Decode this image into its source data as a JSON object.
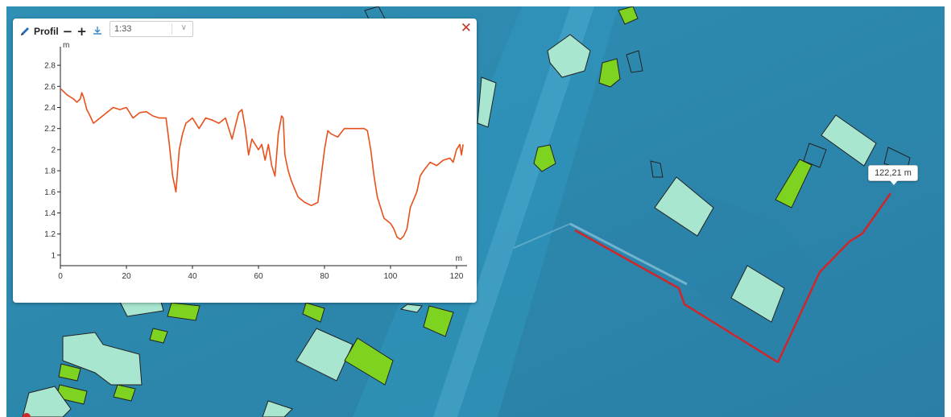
{
  "colors": {
    "map_background": "#2e86ab",
    "building_fill": "#a8e6cf",
    "building_green_fill": "#7ed321",
    "measure_line": "#d0252b",
    "profile_line": "#e8501c",
    "close_icon": "#c0392b"
  },
  "profile_panel": {
    "title": "Profil",
    "minus_label": "−",
    "plus_label": "+",
    "download_icon": "download-icon",
    "scale_value": "1:33",
    "close_icon": "close-icon",
    "pencil_icon": "pencil-icon"
  },
  "map": {
    "measure_label": "122,21 m"
  },
  "chart_data": {
    "type": "line",
    "xlabel": "m",
    "ylabel": "m",
    "x_ticks": [
      "0",
      "20",
      "40",
      "60",
      "80",
      "100",
      "120"
    ],
    "y_ticks": [
      "1",
      "1.2",
      "1.4",
      "1.6",
      "1.8",
      "2",
      "2.2",
      "2.4",
      "2.6",
      "2.8"
    ],
    "xlim": [
      0,
      122.21
    ],
    "ylim": [
      0.9,
      2.9
    ],
    "series": [
      {
        "values": [
          [
            0,
            2.58
          ],
          [
            2,
            2.52
          ],
          [
            4,
            2.48
          ],
          [
            5,
            2.45
          ],
          [
            6,
            2.48
          ],
          [
            6.5,
            2.54
          ],
          [
            7,
            2.5
          ],
          [
            8,
            2.38
          ],
          [
            9,
            2.32
          ],
          [
            10,
            2.25
          ],
          [
            12,
            2.3
          ],
          [
            14,
            2.35
          ],
          [
            16,
            2.4
          ],
          [
            18,
            2.38
          ],
          [
            20,
            2.4
          ],
          [
            22,
            2.3
          ],
          [
            24,
            2.35
          ],
          [
            26,
            2.36
          ],
          [
            28,
            2.32
          ],
          [
            30,
            2.3
          ],
          [
            32,
            2.3
          ],
          [
            33,
            2.05
          ],
          [
            34,
            1.75
          ],
          [
            35,
            1.6
          ],
          [
            36,
            2.0
          ],
          [
            37,
            2.15
          ],
          [
            38,
            2.25
          ],
          [
            40,
            2.3
          ],
          [
            42,
            2.2
          ],
          [
            44,
            2.3
          ],
          [
            46,
            2.28
          ],
          [
            48,
            2.25
          ],
          [
            50,
            2.3
          ],
          [
            52,
            2.1
          ],
          [
            54,
            2.35
          ],
          [
            55,
            2.38
          ],
          [
            56,
            2.2
          ],
          [
            57,
            1.95
          ],
          [
            58,
            2.1
          ],
          [
            59,
            2.05
          ],
          [
            60,
            2.0
          ],
          [
            61,
            2.05
          ],
          [
            62,
            1.9
          ],
          [
            63,
            2.05
          ],
          [
            64,
            1.85
          ],
          [
            65,
            1.75
          ],
          [
            66,
            2.15
          ],
          [
            67,
            2.32
          ],
          [
            67.5,
            2.3
          ],
          [
            68,
            1.95
          ],
          [
            69,
            1.8
          ],
          [
            70,
            1.7
          ],
          [
            72,
            1.55
          ],
          [
            74,
            1.5
          ],
          [
            76,
            1.47
          ],
          [
            78,
            1.5
          ],
          [
            80,
            2.0
          ],
          [
            81,
            2.18
          ],
          [
            82,
            2.15
          ],
          [
            84,
            2.12
          ],
          [
            86,
            2.2
          ],
          [
            88,
            2.2
          ],
          [
            90,
            2.2
          ],
          [
            92,
            2.2
          ],
          [
            93,
            2.18
          ],
          [
            94,
            2.0
          ],
          [
            95,
            1.75
          ],
          [
            96,
            1.55
          ],
          [
            97,
            1.45
          ],
          [
            98,
            1.35
          ],
          [
            100,
            1.3
          ],
          [
            101,
            1.25
          ],
          [
            102,
            1.17
          ],
          [
            103,
            1.15
          ],
          [
            104,
            1.18
          ],
          [
            105,
            1.25
          ],
          [
            106,
            1.45
          ],
          [
            108,
            1.6
          ],
          [
            109,
            1.75
          ],
          [
            110,
            1.8
          ],
          [
            112,
            1.88
          ],
          [
            114,
            1.85
          ],
          [
            116,
            1.9
          ],
          [
            118,
            1.92
          ],
          [
            119,
            1.88
          ],
          [
            120,
            2.0
          ],
          [
            121,
            2.05
          ],
          [
            121.5,
            1.95
          ],
          [
            122,
            2.05
          ]
        ]
      }
    ]
  }
}
